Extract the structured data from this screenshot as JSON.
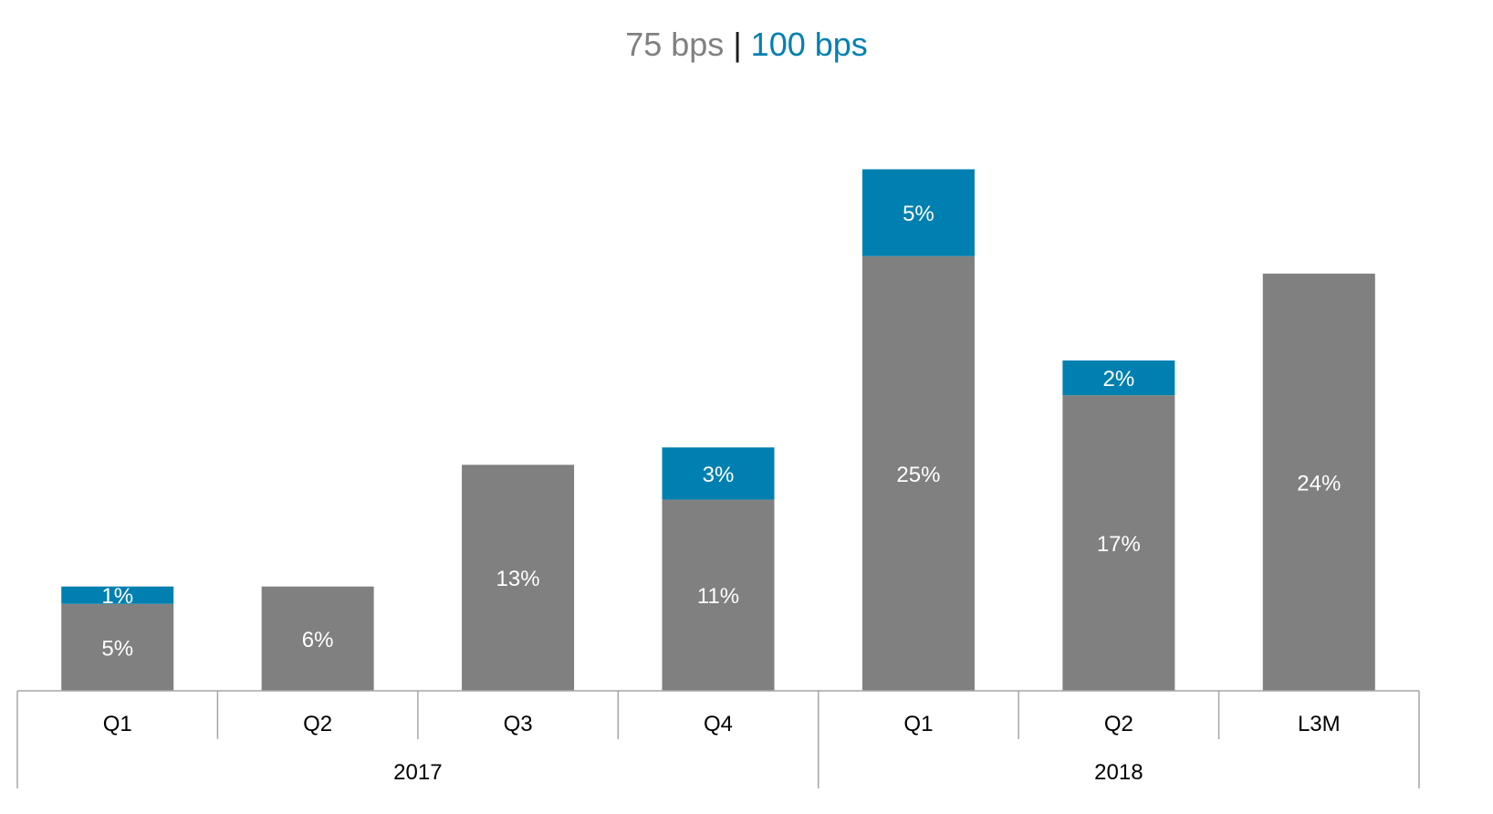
{
  "title": {
    "part1": "75 bps",
    "separator": " | ",
    "part2": "100 bps"
  },
  "colors": {
    "bps75": "#808080",
    "bps100": "#0080b0",
    "axis": "#a6a6a6",
    "title_gray": "#808080",
    "title_sep": "#1a1a1a"
  },
  "chart_data": {
    "type": "bar",
    "stacked": true,
    "categories": [
      "Q1",
      "Q2",
      "Q3",
      "Q4",
      "Q1",
      "Q2",
      "L3M"
    ],
    "groups": [
      {
        "label": "2017",
        "count": 4
      },
      {
        "label": "2018",
        "count": 3
      }
    ],
    "series": [
      {
        "name": "75 bps",
        "values": [
          5,
          6,
          13,
          11,
          25,
          17,
          24
        ],
        "labels": [
          "5%",
          "6%",
          "13%",
          "11%",
          "25%",
          "17%",
          "24%"
        ]
      },
      {
        "name": "100 bps",
        "values": [
          1,
          0,
          0,
          3,
          5,
          2,
          0
        ],
        "labels": [
          "1%",
          "",
          "",
          "3%",
          "5%",
          "2%",
          ""
        ]
      }
    ],
    "title": "75 bps | 100 bps",
    "xlabel": "",
    "ylabel": "",
    "grid": false,
    "legend": "none"
  }
}
